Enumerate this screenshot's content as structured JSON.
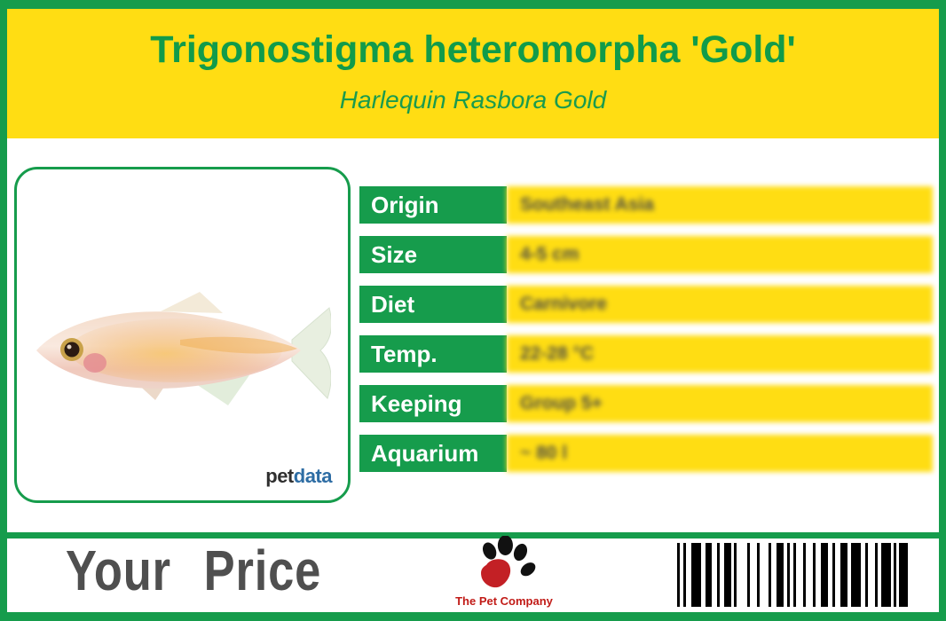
{
  "header": {
    "title": "Trigonostigma heteromorpha 'Gold'",
    "subtitle": "Harlequin Rasbora Gold"
  },
  "photo": {
    "subject": "harlequin-rasbora-gold-fish",
    "brand_pet": "pet",
    "brand_data": "data"
  },
  "table": {
    "rows": [
      {
        "label": "Origin",
        "value": "Southeast Asia"
      },
      {
        "label": "Size",
        "value": "4-5 cm"
      },
      {
        "label": "Diet",
        "value": "Carnivore"
      },
      {
        "label": "Temp.",
        "value": "22-28 °C"
      },
      {
        "label": "Keeping",
        "value": "Group 5+"
      },
      {
        "label": "Aquarium",
        "value": "~ 80 l"
      }
    ]
  },
  "footer": {
    "price_label": "Your Price",
    "company_name": "The Pet Company",
    "barcode": {
      "pattern": [
        [
          3,
          4
        ],
        [
          3,
          6
        ],
        [
          11,
          5
        ],
        [
          7,
          6
        ],
        [
          3,
          5
        ],
        [
          8,
          3
        ],
        [
          3,
          12
        ],
        [
          3,
          8
        ],
        [
          3,
          10
        ],
        [
          3,
          6
        ],
        [
          8,
          4
        ],
        [
          3,
          4
        ],
        [
          3,
          8
        ],
        [
          3,
          8
        ],
        [
          3,
          6
        ],
        [
          8,
          5
        ],
        [
          3,
          6
        ],
        [
          8,
          4
        ],
        [
          11,
          5
        ],
        [
          3,
          8
        ],
        [
          3,
          4
        ],
        [
          11,
          3
        ],
        [
          3,
          3
        ],
        [
          10,
          0
        ]
      ]
    }
  },
  "colors": {
    "frame_green": "#169c4c",
    "header_yellow": "#ffdd13",
    "title_green": "#119b4a",
    "label_cell_green": "#169c4c",
    "value_cell_yellow": "#ffdd13",
    "price_gray": "#4f4f4f",
    "company_red": "#c11b17",
    "brand_dark": "#2f2f2f",
    "brand_blue": "#2e6da4"
  }
}
